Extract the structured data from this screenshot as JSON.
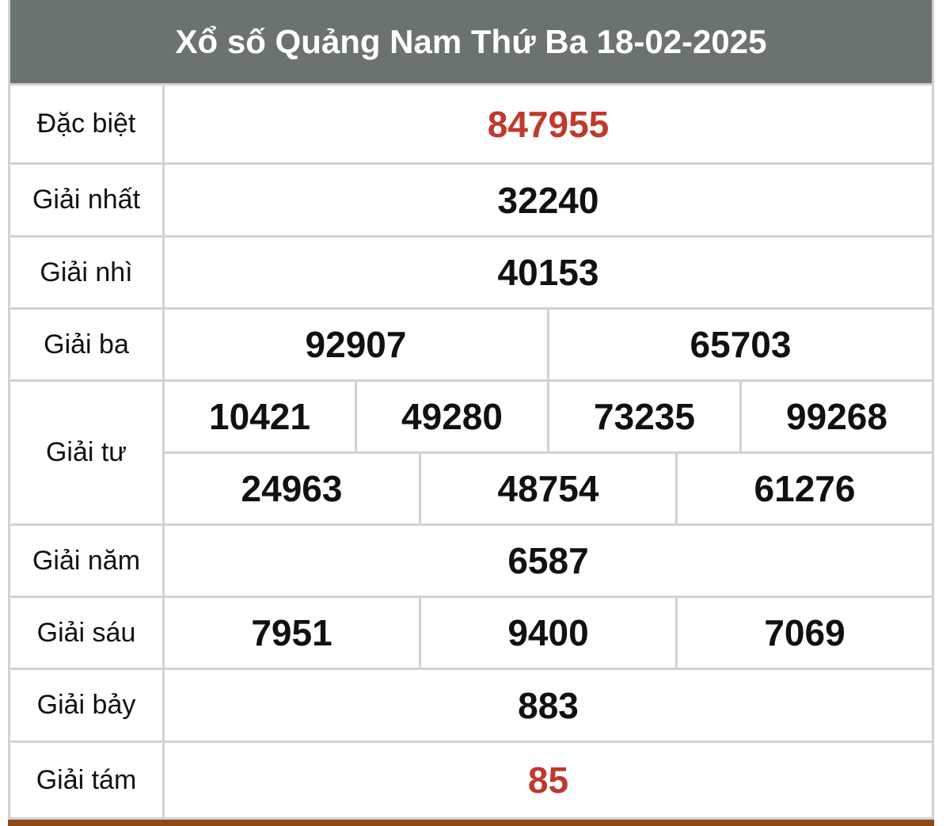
{
  "title": "Xổ số Quảng Nam Thứ Ba 18-02-2025",
  "colors": {
    "header_bg": "#6b7372",
    "highlight": "#c0392b",
    "border": "#d2d2d2",
    "bottom_bar": "#8b4a17"
  },
  "prizes": [
    {
      "label": "Đặc biệt",
      "rows": [
        [
          "847955"
        ]
      ],
      "highlight": true
    },
    {
      "label": "Giải nhất",
      "rows": [
        [
          "32240"
        ]
      ]
    },
    {
      "label": "Giải nhì",
      "rows": [
        [
          "40153"
        ]
      ]
    },
    {
      "label": "Giải ba",
      "rows": [
        [
          "92907",
          "65703"
        ]
      ]
    },
    {
      "label": "Giải tư",
      "rows": [
        [
          "10421",
          "49280",
          "73235",
          "99268"
        ],
        [
          "24963",
          "48754",
          "61276"
        ]
      ]
    },
    {
      "label": "Giải năm",
      "rows": [
        [
          "6587"
        ]
      ]
    },
    {
      "label": "Giải sáu",
      "rows": [
        [
          "7951",
          "9400",
          "7069"
        ]
      ]
    },
    {
      "label": "Giải bảy",
      "rows": [
        [
          "883"
        ]
      ]
    },
    {
      "label": "Giải tám",
      "rows": [
        [
          "85"
        ]
      ],
      "highlight": true
    }
  ]
}
